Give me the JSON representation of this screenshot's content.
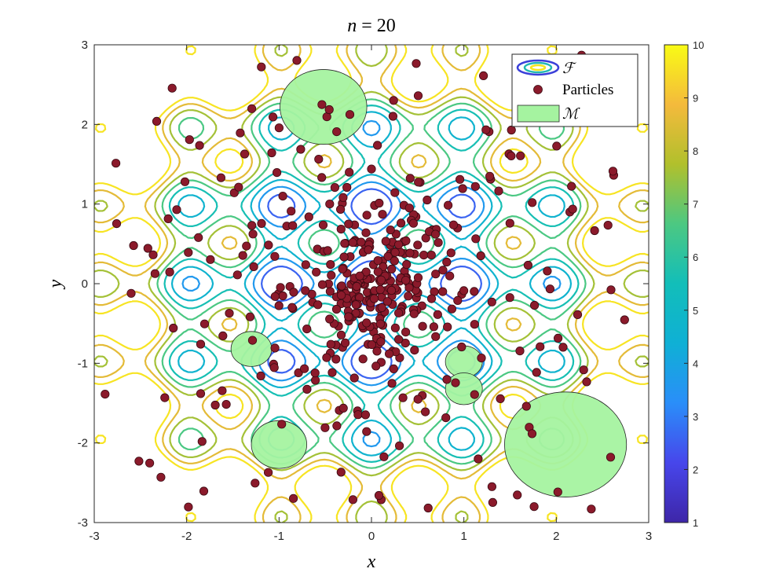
{
  "chart_data": {
    "type": "scatter",
    "title": "n = 20",
    "title_parts": {
      "var": "n",
      "rest": " = 20"
    },
    "xlabel": "x",
    "ylabel": "y",
    "xlim": [
      -3,
      3
    ],
    "ylim": [
      -3,
      3
    ],
    "xticks": [
      "-3",
      "-2",
      "-1",
      "0",
      "1",
      "2",
      "3"
    ],
    "yticks": [
      "-3",
      "-2",
      "-1",
      "0",
      "1",
      "2",
      "3"
    ],
    "grid": false,
    "legend_position": "top-right",
    "legend": [
      {
        "label": "ℱ",
        "kind": "contour"
      },
      {
        "label": "Particles",
        "kind": "marker"
      },
      {
        "label": "ℳ",
        "kind": "patch"
      }
    ],
    "colorbar": {
      "min": 1,
      "max": 10,
      "ticks": [
        "1",
        "2",
        "3",
        "4",
        "5",
        "6",
        "7",
        "8",
        "9",
        "10"
      ],
      "colormap": "parula"
    },
    "contour_levels": [
      2.6,
      3.6,
      4.6,
      5.6,
      6.6,
      7.6,
      8.6,
      9.6
    ],
    "marker_color": "#8b1a2b",
    "patch_color": "#a5f3a0",
    "circles": [
      {
        "x": -0.52,
        "y": 2.22,
        "r": 0.47
      },
      {
        "x": -1.3,
        "y": -0.82,
        "r": 0.22
      },
      {
        "x": -1.0,
        "y": -2.02,
        "r": 0.3
      },
      {
        "x": 1.0,
        "y": -0.98,
        "r": 0.2
      },
      {
        "x": 1.0,
        "y": -1.32,
        "r": 0.2
      },
      {
        "x": 2.1,
        "y": -2.02,
        "r": 0.66
      }
    ],
    "particle_count": 440
  }
}
